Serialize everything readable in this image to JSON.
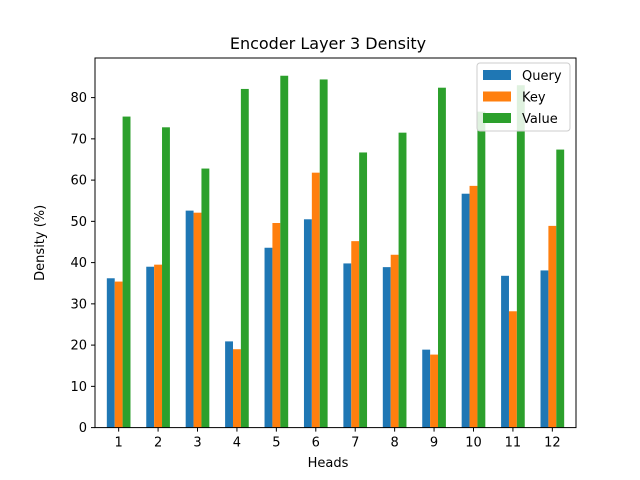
{
  "chart_data": {
    "type": "bar",
    "title": "Encoder Layer 3 Density",
    "xlabel": "Heads",
    "ylabel": "Density (%)",
    "categories": [
      "1",
      "2",
      "3",
      "4",
      "5",
      "6",
      "7",
      "8",
      "9",
      "10",
      "11",
      "12"
    ],
    "series": [
      {
        "name": "Query",
        "color": "#1f77b4",
        "values": [
          36.2,
          39.0,
          52.6,
          20.9,
          43.6,
          50.5,
          39.8,
          38.9,
          18.9,
          56.7,
          36.8,
          38.1
        ]
      },
      {
        "name": "Key",
        "color": "#ff7f0e",
        "values": [
          35.4,
          39.5,
          52.1,
          19.0,
          49.6,
          61.8,
          45.2,
          41.9,
          17.7,
          58.6,
          28.2,
          48.9
        ]
      },
      {
        "name": "Value",
        "color": "#2ca02c",
        "values": [
          75.4,
          72.8,
          62.8,
          82.1,
          85.3,
          84.4,
          66.7,
          71.5,
          82.4,
          76.6,
          83.0,
          67.4
        ]
      }
    ],
    "ylim": [
      0,
      89.6
    ],
    "yticks": [
      0,
      10,
      20,
      30,
      40,
      50,
      60,
      70,
      80
    ],
    "grid": false,
    "legend_position": "top-right"
  }
}
